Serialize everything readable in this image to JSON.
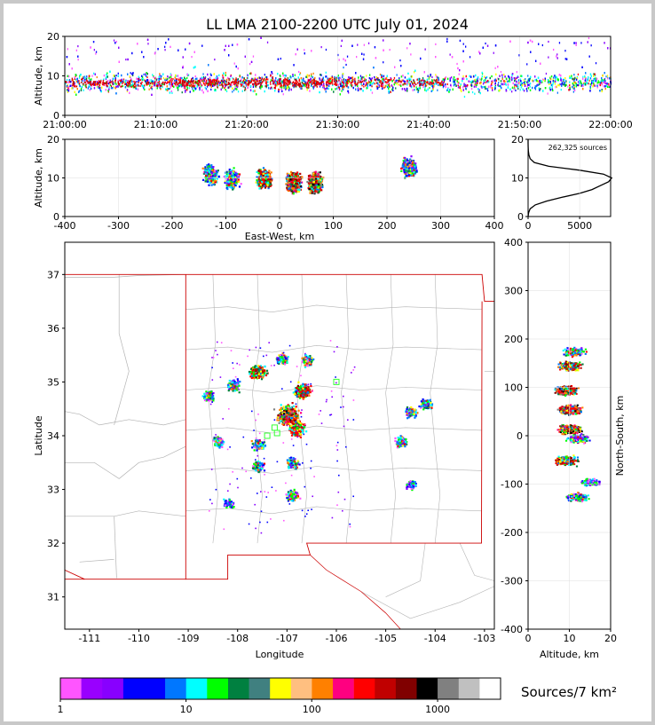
{
  "chart_data": [
    {
      "panel": "time-altitude",
      "type": "scatter",
      "title": "LL LMA 2100-2200 UTC July 01, 2024",
      "xlabel": "",
      "ylabel": "Altitude, km",
      "xticks": [
        "21:00:00",
        "21:10:00",
        "21:20:00",
        "21:30:00",
        "21:40:00",
        "21:50:00",
        "22:00:00"
      ],
      "yticks": [
        0,
        10,
        20
      ],
      "ylim": [
        0,
        20
      ],
      "grid": true
    },
    {
      "panel": "east-west-altitude",
      "type": "heatmap",
      "xlabel": "East-West, km",
      "ylabel": "Altitude, km",
      "xlim": [
        -400,
        400
      ],
      "ylim": [
        0,
        20
      ],
      "xticks": [
        -400,
        -300,
        -200,
        -100,
        0,
        100,
        200,
        300,
        400
      ],
      "yticks": [
        0,
        10,
        20
      ],
      "clusters": [
        {
          "x": -130,
          "alt": 11,
          "intensity": "medium"
        },
        {
          "x": -90,
          "alt": 10,
          "intensity": "medium"
        },
        {
          "x": -30,
          "alt": 10,
          "intensity": "high"
        },
        {
          "x": 25,
          "alt": 9,
          "intensity": "very high"
        },
        {
          "x": 65,
          "alt": 9,
          "intensity": "very high"
        },
        {
          "x": 240,
          "alt": 13,
          "intensity": "medium"
        }
      ]
    },
    {
      "panel": "altitude-histogram",
      "type": "line",
      "annotation": "262,325 sources",
      "xlim": [
        0,
        8000
      ],
      "xticks": [
        0,
        5000
      ],
      "ylim": [
        0,
        20
      ],
      "yticks": [
        0,
        10,
        20
      ],
      "points": [
        [
          0,
          0
        ],
        [
          50,
          1
        ],
        [
          200,
          2
        ],
        [
          700,
          3
        ],
        [
          1800,
          4
        ],
        [
          3300,
          5
        ],
        [
          5000,
          6
        ],
        [
          6200,
          7
        ],
        [
          7000,
          8
        ],
        [
          7800,
          9
        ],
        [
          8100,
          10
        ],
        [
          7300,
          11
        ],
        [
          5000,
          12
        ],
        [
          2000,
          13
        ],
        [
          600,
          14
        ],
        [
          200,
          15
        ],
        [
          80,
          16
        ],
        [
          30,
          17
        ],
        [
          10,
          18
        ],
        [
          0,
          19
        ],
        [
          0,
          20
        ]
      ]
    },
    {
      "panel": "plan-view",
      "type": "heatmap",
      "xlabel": "Longitude",
      "ylabel": "Latitude",
      "xlim": [
        -111.5,
        -102.8
      ],
      "ylim": [
        30.4,
        37.6
      ],
      "xticks": [
        -111,
        -110,
        -109,
        -108,
        -107,
        -106,
        -105,
        -104,
        -103
      ],
      "yticks": [
        31,
        32,
        33,
        34,
        35,
        36,
        37
      ],
      "clusters": [
        {
          "lon": -108.6,
          "lat": 34.75,
          "intensity": "medium"
        },
        {
          "lon": -108.1,
          "lat": 34.95,
          "intensity": "medium"
        },
        {
          "lon": -107.6,
          "lat": 35.2,
          "intensity": "high"
        },
        {
          "lon": -107.1,
          "lat": 35.45,
          "intensity": "medium"
        },
        {
          "lon": -106.6,
          "lat": 35.4,
          "intensity": "medium"
        },
        {
          "lon": -106.7,
          "lat": 34.85,
          "intensity": "high"
        },
        {
          "lon": -107.0,
          "lat": 34.4,
          "intensity": "very high"
        },
        {
          "lon": -106.8,
          "lat": 34.15,
          "intensity": "high"
        },
        {
          "lon": -107.6,
          "lat": 33.85,
          "intensity": "medium"
        },
        {
          "lon": -108.4,
          "lat": 33.9,
          "intensity": "medium"
        },
        {
          "lon": -106.9,
          "lat": 33.5,
          "intensity": "medium"
        },
        {
          "lon": -107.6,
          "lat": 33.45,
          "intensity": "medium"
        },
        {
          "lon": -106.9,
          "lat": 32.9,
          "intensity": "medium"
        },
        {
          "lon": -104.5,
          "lat": 34.45,
          "intensity": "medium"
        },
        {
          "lon": -104.2,
          "lat": 34.6,
          "intensity": "medium"
        },
        {
          "lon": -104.7,
          "lat": 33.9,
          "intensity": "medium"
        },
        {
          "lon": -104.5,
          "lat": 33.1,
          "intensity": "low"
        },
        {
          "lon": -108.2,
          "lat": 32.75,
          "intensity": "low"
        }
      ],
      "stations": [
        [
          -107.4,
          34.0
        ],
        [
          -107.2,
          34.05
        ],
        [
          -106.0,
          35.0
        ],
        [
          -107.25,
          34.15
        ]
      ]
    },
    {
      "panel": "altitude-north-south",
      "type": "heatmap",
      "xlabel": "Altitude, km",
      "ylabel": "North-South, km",
      "xlim": [
        0,
        20
      ],
      "ylim": [
        -400,
        400
      ],
      "xticks": [
        0,
        10,
        20
      ],
      "yticks": [
        -400,
        -300,
        -200,
        -100,
        0,
        100,
        200,
        300,
        400
      ],
      "clusters": [
        {
          "ns": 175,
          "alt": 11,
          "intensity": "medium"
        },
        {
          "ns": 145,
          "alt": 10,
          "intensity": "high"
        },
        {
          "ns": 95,
          "alt": 9,
          "intensity": "very high"
        },
        {
          "ns": 55,
          "alt": 10,
          "intensity": "very high"
        },
        {
          "ns": 15,
          "alt": 10,
          "intensity": "very high"
        },
        {
          "ns": -5,
          "alt": 12,
          "intensity": "medium"
        },
        {
          "ns": -50,
          "alt": 9,
          "intensity": "high"
        },
        {
          "ns": -95,
          "alt": 15,
          "intensity": "low"
        },
        {
          "ns": -125,
          "alt": 12,
          "intensity": "medium"
        }
      ]
    }
  ],
  "colorbar": {
    "label": "Sources/7 km²",
    "ticks": [
      "1",
      "10",
      "100",
      "1000"
    ],
    "colors": [
      "#ff55ff",
      "#9900ff",
      "#8800ff",
      "#0000ff",
      "#0000ff",
      "#0077ff",
      "#00ffff",
      "#00ff00",
      "#008040",
      "#408080",
      "#ffff00",
      "#ffbf80",
      "#ff8000",
      "#ff0080",
      "#ff0000",
      "#c00000",
      "#800000",
      "#000000",
      "#808080",
      "#c0c0c0",
      "#ffffff"
    ]
  }
}
